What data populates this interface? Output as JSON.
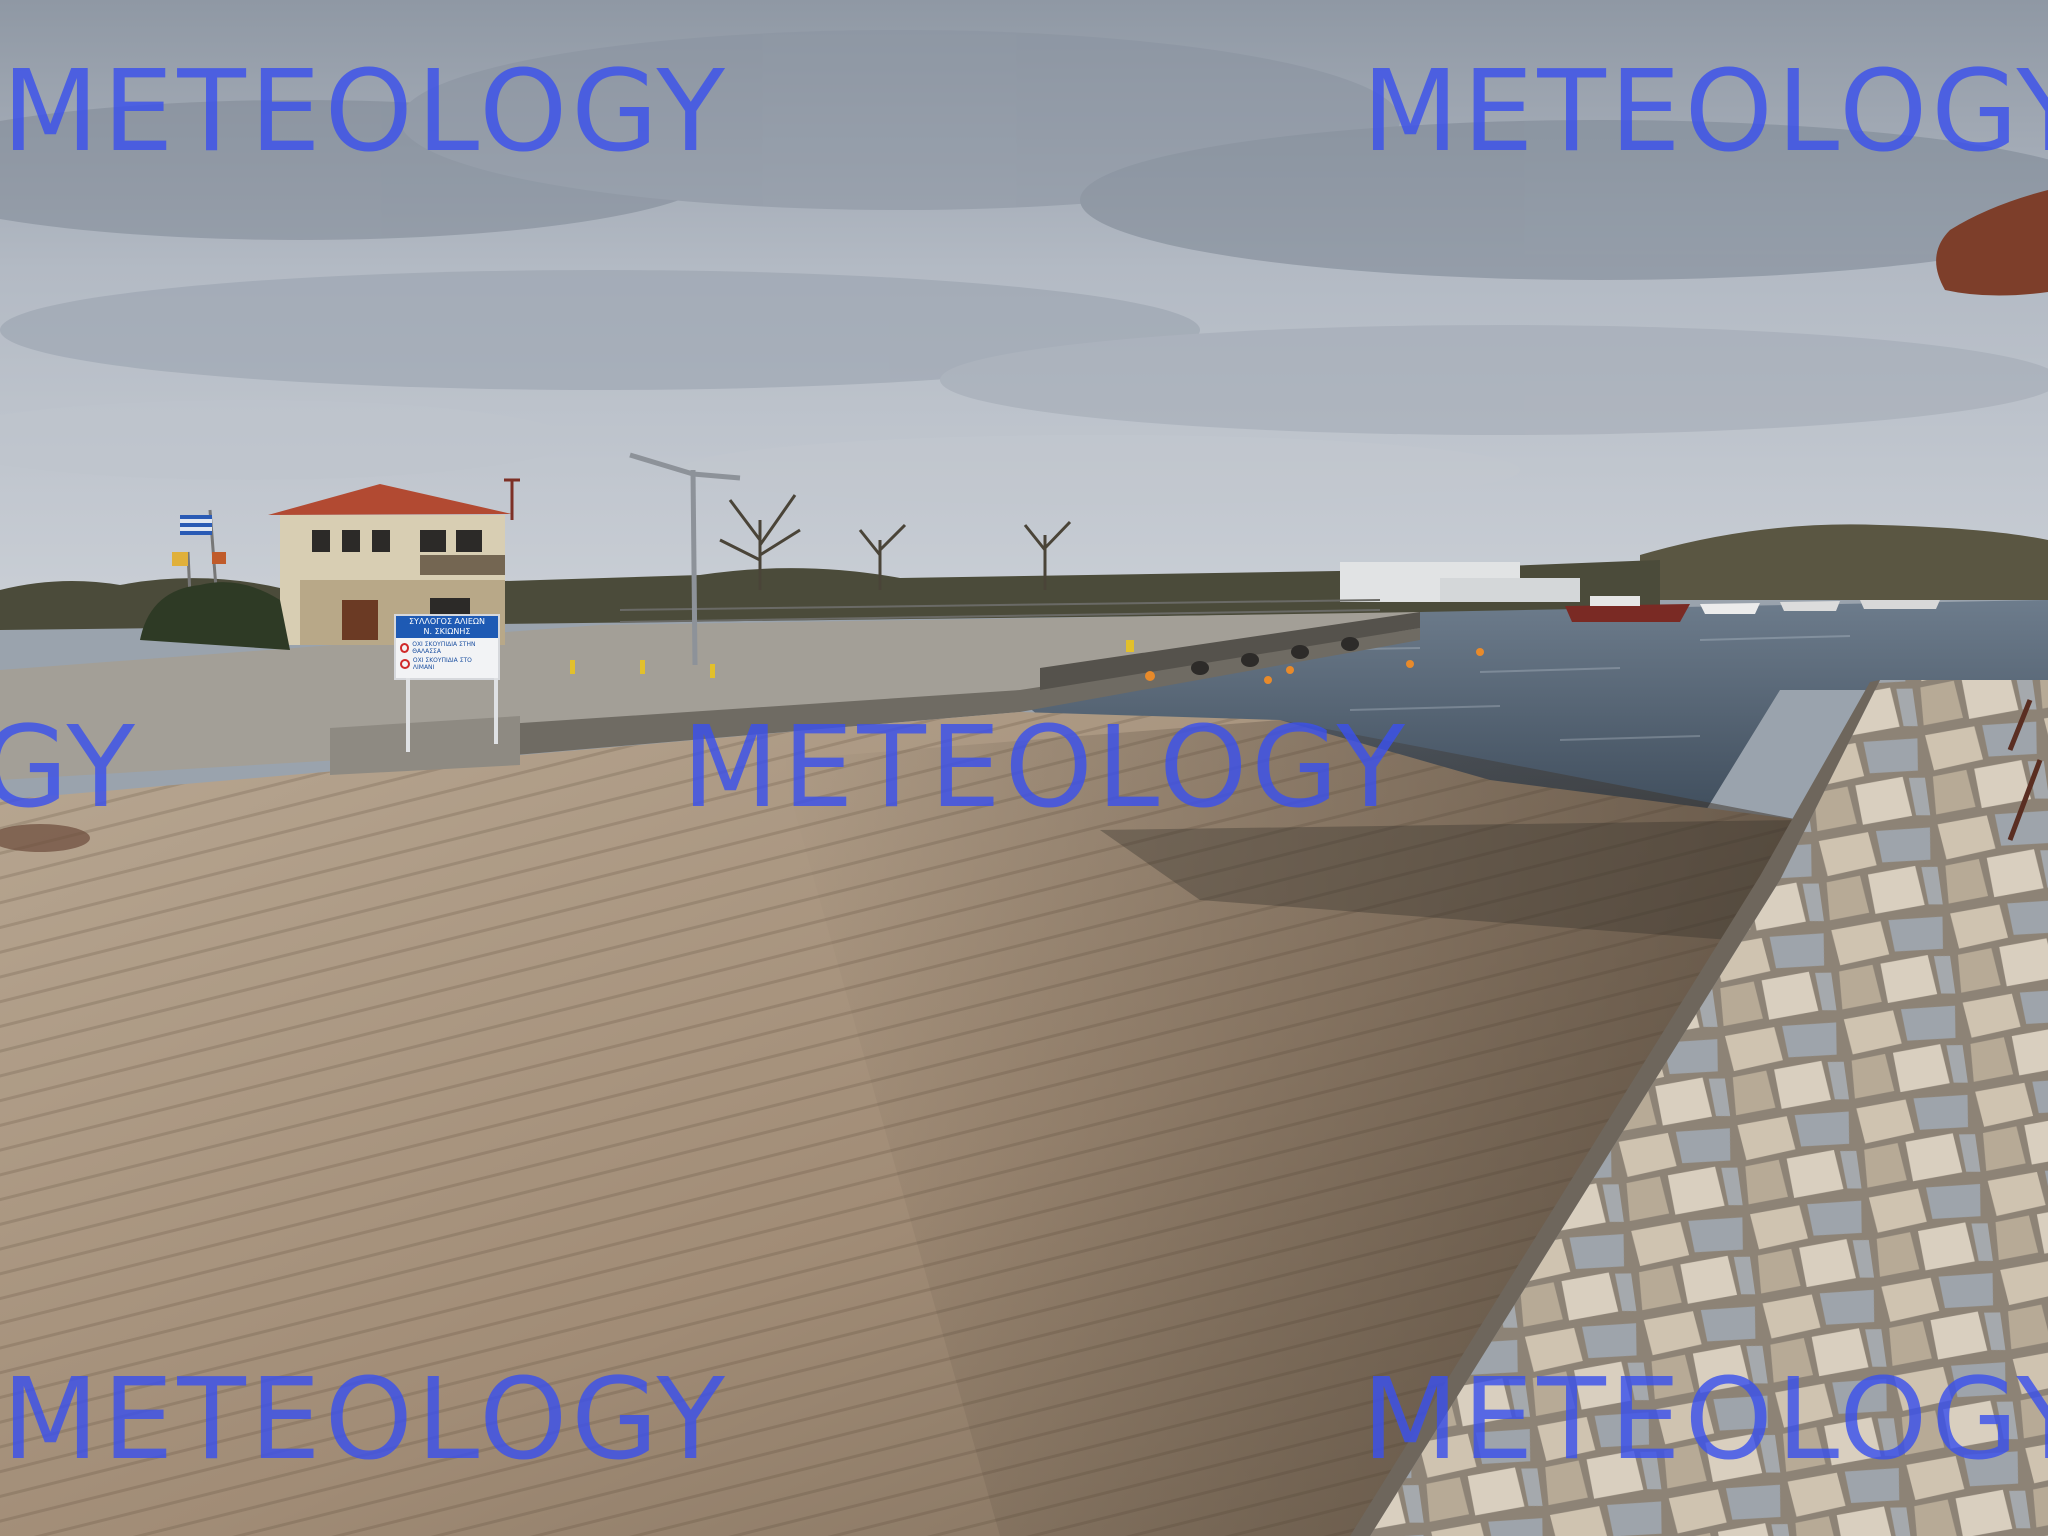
{
  "watermark": {
    "text": "METEOLOGY",
    "color": "#3a50ec"
  },
  "sign": {
    "title_lines": [
      "ΣΥΛΛΟΓΟΣ ΑΛΙΕΩΝ",
      "Ν. ΣΚΙΩΝΗΣ"
    ],
    "rules": [
      "ΟΧΙ ΣΚΟΥΠΙΔΙΑ ΣΤΗΝ ΘΑΛΑΣΣΑ",
      "ΟΧΙ ΣΚΟΥΠΙΔΙΑ ΣΤΟ ΛΙΜΑΝΙ"
    ],
    "accent": "#1e5ab4"
  },
  "colors": {
    "sky": "#a7afba",
    "water": "#4d5d6e",
    "ramp": "#a8947f",
    "stone": "#b9a893",
    "roof": "#b24a32"
  }
}
